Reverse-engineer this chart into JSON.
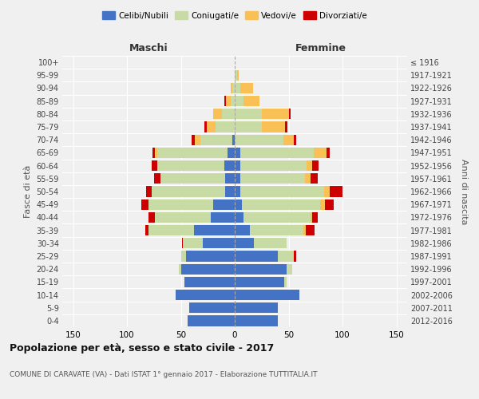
{
  "age_groups": [
    "0-4",
    "5-9",
    "10-14",
    "15-19",
    "20-24",
    "25-29",
    "30-34",
    "35-39",
    "40-44",
    "45-49",
    "50-54",
    "55-59",
    "60-64",
    "65-69",
    "70-74",
    "75-79",
    "80-84",
    "85-89",
    "90-94",
    "95-99",
    "100+"
  ],
  "birth_years": [
    "2012-2016",
    "2007-2011",
    "2002-2006",
    "1997-2001",
    "1992-1996",
    "1987-1991",
    "1982-1986",
    "1977-1981",
    "1972-1976",
    "1967-1971",
    "1962-1966",
    "1957-1961",
    "1952-1956",
    "1947-1951",
    "1942-1946",
    "1937-1941",
    "1932-1936",
    "1927-1931",
    "1922-1926",
    "1917-1921",
    "≤ 1916"
  ],
  "male": {
    "celibi": [
      44,
      42,
      55,
      47,
      50,
      45,
      30,
      38,
      22,
      20,
      9,
      9,
      10,
      7,
      2,
      0,
      0,
      0,
      0,
      0,
      0
    ],
    "coniugati": [
      0,
      0,
      0,
      0,
      2,
      5,
      18,
      42,
      52,
      60,
      68,
      60,
      62,
      65,
      30,
      18,
      12,
      4,
      2,
      0,
      0
    ],
    "vedovi": [
      0,
      0,
      0,
      0,
      0,
      0,
      0,
      0,
      0,
      0,
      0,
      0,
      0,
      2,
      5,
      8,
      8,
      4,
      2,
      0,
      0
    ],
    "divorziati": [
      0,
      0,
      0,
      0,
      0,
      0,
      1,
      3,
      6,
      7,
      5,
      6,
      5,
      2,
      3,
      2,
      0,
      2,
      0,
      0,
      0
    ]
  },
  "female": {
    "nubili": [
      40,
      40,
      60,
      46,
      48,
      40,
      18,
      14,
      8,
      7,
      5,
      5,
      5,
      5,
      0,
      0,
      0,
      0,
      0,
      0,
      0
    ],
    "coniugate": [
      0,
      0,
      0,
      2,
      5,
      15,
      30,
      50,
      62,
      72,
      78,
      60,
      62,
      68,
      45,
      25,
      25,
      8,
      5,
      2,
      0
    ],
    "vedove": [
      0,
      0,
      0,
      0,
      0,
      0,
      0,
      2,
      2,
      5,
      5,
      5,
      5,
      12,
      10,
      22,
      25,
      15,
      12,
      2,
      0
    ],
    "divorziate": [
      0,
      0,
      0,
      0,
      0,
      2,
      0,
      8,
      5,
      8,
      12,
      7,
      6,
      3,
      2,
      2,
      2,
      0,
      0,
      0,
      0
    ]
  },
  "colors": {
    "celibi": "#4472c4",
    "coniugati": "#c8dba4",
    "vedovi": "#f9c155",
    "divorziati": "#cc0000"
  },
  "title": "Popolazione per età, sesso e stato civile - 2017",
  "subtitle": "COMUNE DI CARAVATE (VA) - Dati ISTAT 1° gennaio 2017 - Elaborazione TUTTITALIA.IT",
  "xlabel_left": "Maschi",
  "xlabel_right": "Femmine",
  "ylabel_left": "Fasce di età",
  "ylabel_right": "Anni di nascita",
  "legend_labels": [
    "Celibi/Nubili",
    "Coniugati/e",
    "Vedovi/e",
    "Divorziati/e"
  ],
  "xlim": 160,
  "background_color": "#f0f0f0"
}
